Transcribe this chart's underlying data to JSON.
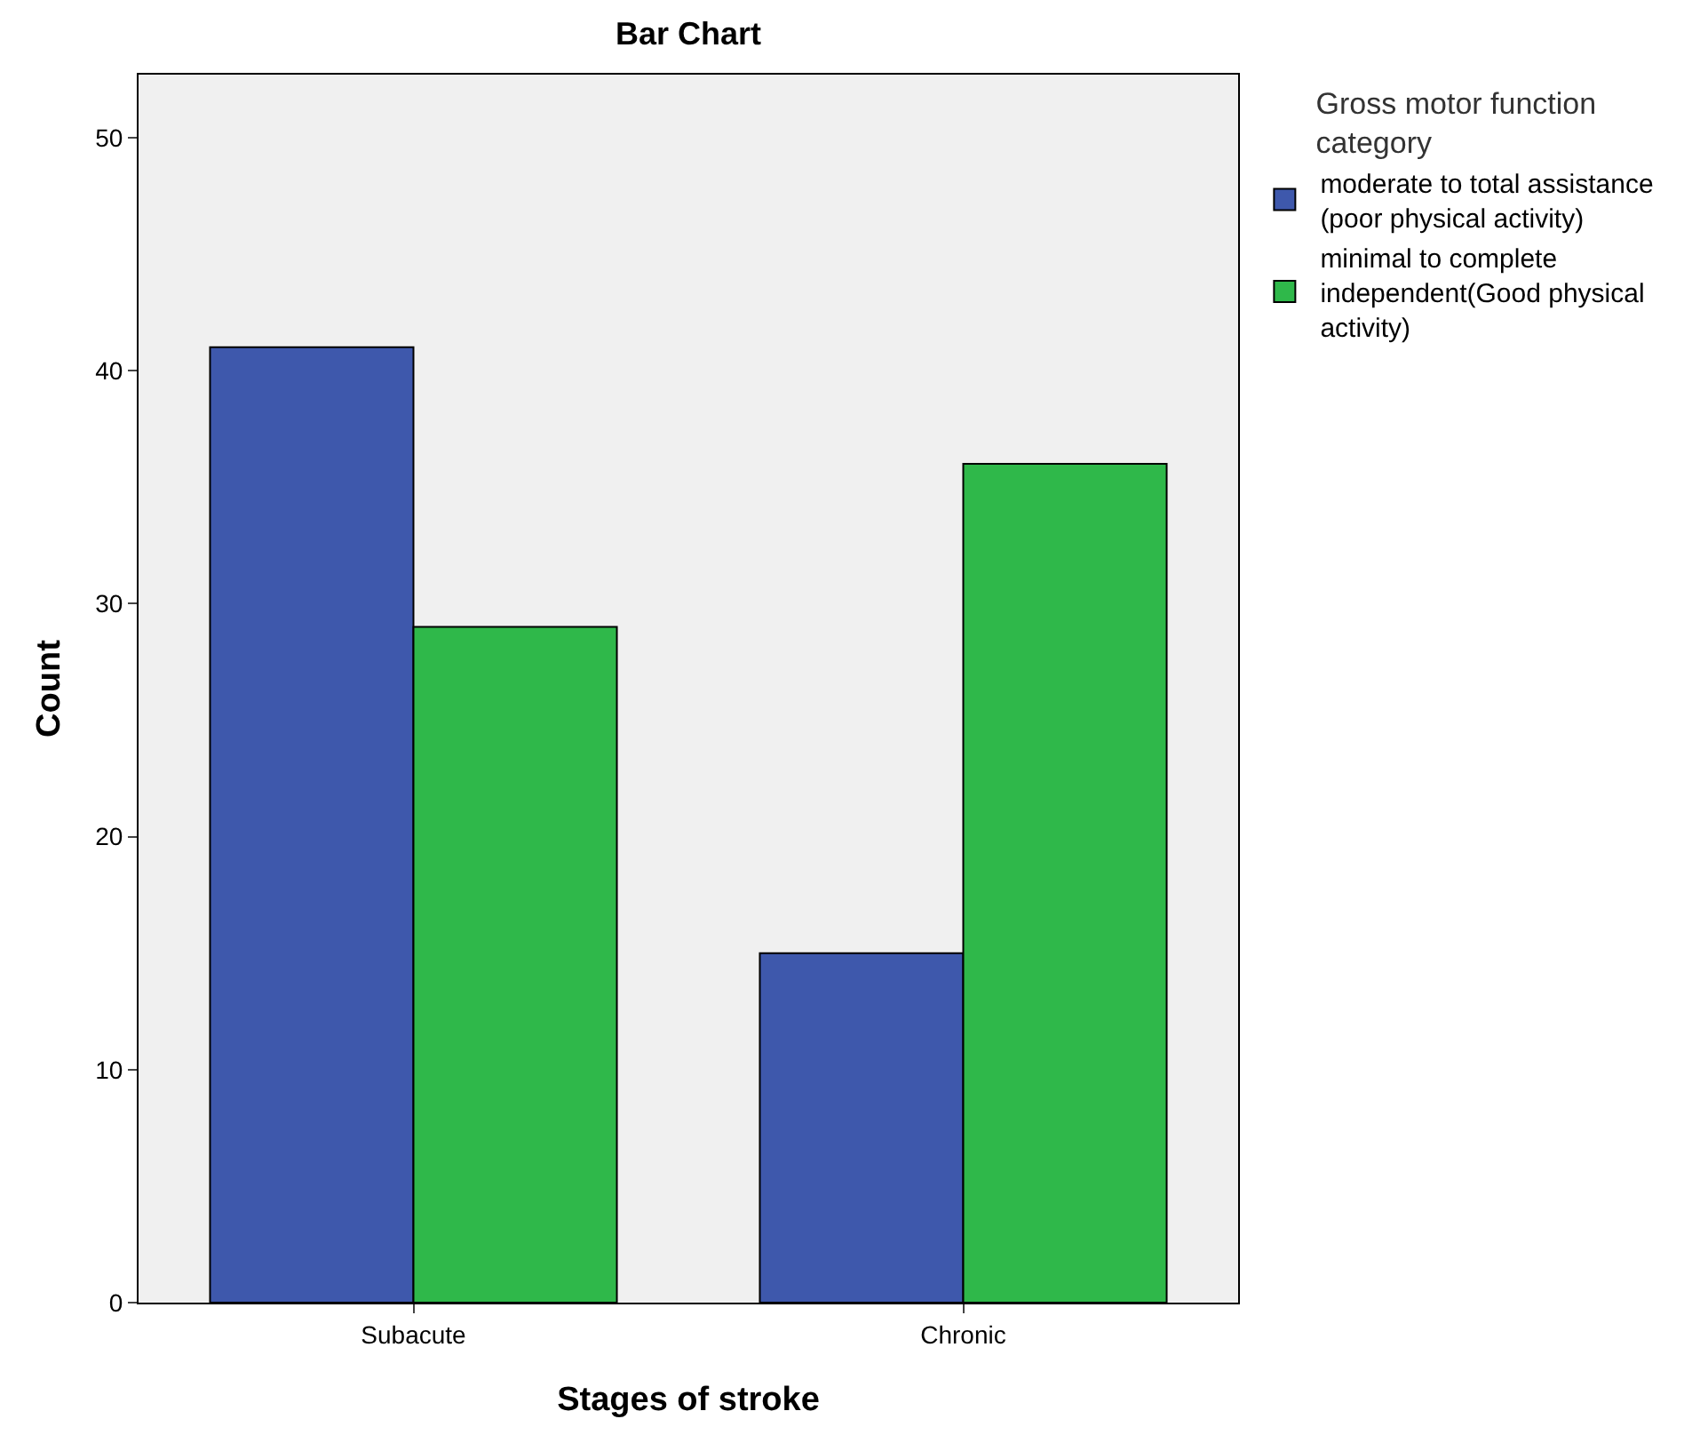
{
  "chart_data": {
    "type": "bar",
    "title": "Bar Chart",
    "xlabel": "Stages of stroke",
    "ylabel": "Count",
    "legend_title": "Gross motor function category",
    "categories": [
      "Subacute",
      "Chronic"
    ],
    "series": [
      {
        "name": "moderate to total assistance (poor physical activity)",
        "color": "#3e58ac",
        "values": [
          41,
          15
        ]
      },
      {
        "name": "minimal to complete independent(Good physical activity)",
        "color": "#2fb84a",
        "values": [
          29,
          36
        ]
      }
    ],
    "ylim": [
      0,
      52.7
    ],
    "yticks": [
      0,
      10,
      20,
      30,
      40,
      50
    ],
    "grid": false,
    "legend": "top right"
  }
}
